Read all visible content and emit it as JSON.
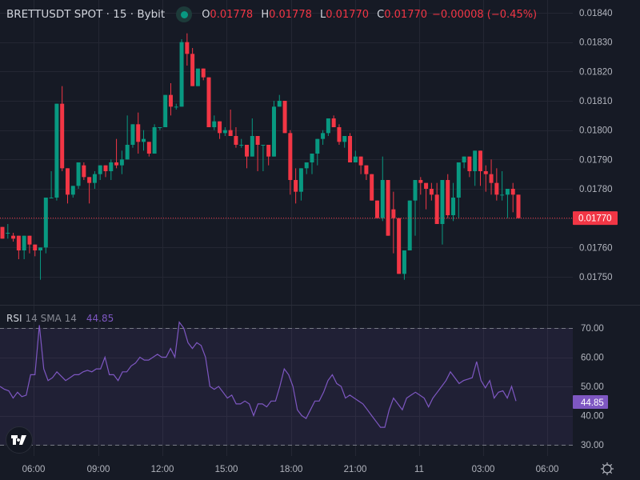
{
  "header": {
    "symbol": "BRETTUSDT SPOT · 15 · Bybit",
    "status_color": "#089981",
    "open_label": "O",
    "open": "0.01778",
    "high_label": "H",
    "high": "0.01778",
    "low_label": "L",
    "low": "0.01770",
    "close_label": "C",
    "close": "0.01770",
    "change": "−0.00008 (−0.45%)"
  },
  "rsi_legend": {
    "name": "RSI",
    "params": "14 SMA 14",
    "value": "44.85"
  },
  "colors": {
    "up": "#089981",
    "down": "#f23645",
    "rsi": "#7e57c2",
    "bg": "#161a25",
    "grid": "#242733"
  },
  "price_axis": {
    "ticks": [
      "0.01840",
      "0.01830",
      "0.01820",
      "0.01810",
      "0.01800",
      "0.01790",
      "0.01780",
      "0.01760",
      "0.01750"
    ],
    "last_price_label": "0.01770"
  },
  "rsi_axis": {
    "ticks": [
      "70.00",
      "60.00",
      "50.00",
      "40.00",
      "30.00"
    ],
    "last_value_label": "44.85"
  },
  "time_axis": {
    "ticks": [
      "06:00",
      "09:00",
      "12:00",
      "15:00",
      "18:00",
      "21:00",
      "11",
      "03:00",
      "06:00"
    ]
  },
  "chart_data": [
    {
      "type": "candlestick",
      "title": "BRETTUSDT SPOT · 15 · Bybit",
      "interval": "15m",
      "ylim": [
        0.01745,
        0.01842
      ],
      "last_price": 0.0177,
      "x_ticks": [
        "06:00",
        "09:00",
        "12:00",
        "15:00",
        "18:00",
        "21:00",
        "11",
        "03:00",
        "06:00"
      ],
      "ohlc": [
        [
          0.01767,
          0.01767,
          0.01763,
          0.01763
        ],
        [
          0.01765,
          0.01768,
          0.01763,
          0.01765
        ],
        [
          0.01764,
          0.01765,
          0.01762,
          0.01763
        ],
        [
          0.01764,
          0.01764,
          0.01756,
          0.01759
        ],
        [
          0.01759,
          0.01764,
          0.01756,
          0.01764
        ],
        [
          0.01764,
          0.01764,
          0.01758,
          0.01761
        ],
        [
          0.01761,
          0.01761,
          0.01757,
          0.01759
        ],
        [
          0.01759,
          0.0176,
          0.01749,
          0.0176
        ],
        [
          0.0176,
          0.01777,
          0.01758,
          0.01777
        ],
        [
          0.01777,
          0.01786,
          0.01777,
          0.01777
        ],
        [
          0.01777,
          0.01809,
          0.01776,
          0.01809
        ],
        [
          0.01809,
          0.01815,
          0.01786,
          0.01787
        ],
        [
          0.01787,
          0.01787,
          0.01775,
          0.01778
        ],
        [
          0.01778,
          0.01781,
          0.01777,
          0.01781
        ],
        [
          0.01781,
          0.01788,
          0.0178,
          0.01789
        ],
        [
          0.01788,
          0.01789,
          0.01783,
          0.01784
        ],
        [
          0.01784,
          0.01784,
          0.01775,
          0.01782
        ],
        [
          0.01782,
          0.01786,
          0.0178,
          0.01785
        ],
        [
          0.01785,
          0.01788,
          0.01783,
          0.01788
        ],
        [
          0.01788,
          0.01788,
          0.01784,
          0.01786
        ],
        [
          0.01786,
          0.0179,
          0.01783,
          0.01789
        ],
        [
          0.01789,
          0.01797,
          0.01787,
          0.01788
        ],
        [
          0.01788,
          0.01793,
          0.01785,
          0.0179
        ],
        [
          0.0179,
          0.01805,
          0.0179,
          0.01795
        ],
        [
          0.01795,
          0.01802,
          0.01794,
          0.01802
        ],
        [
          0.01802,
          0.01806,
          0.01792,
          0.01796
        ],
        [
          0.01796,
          0.018,
          0.01793,
          0.01797
        ],
        [
          0.01796,
          0.01796,
          0.01791,
          0.01792
        ],
        [
          0.01792,
          0.01802,
          0.01792,
          0.01801
        ],
        [
          0.01801,
          0.01801,
          0.018,
          0.01801
        ],
        [
          0.01801,
          0.01812,
          0.01802,
          0.01812
        ],
        [
          0.01812,
          0.01816,
          0.01805,
          0.01808
        ],
        [
          0.01808,
          0.01809,
          0.01807,
          0.01808
        ],
        [
          0.01808,
          0.01831,
          0.01808,
          0.0183
        ],
        [
          0.0183,
          0.01833,
          0.01822,
          0.01826
        ],
        [
          0.01826,
          0.01828,
          0.01815,
          0.01815
        ],
        [
          0.01815,
          0.01819,
          0.01815,
          0.01821
        ],
        [
          0.01821,
          0.01821,
          0.01817,
          0.01818
        ],
        [
          0.01818,
          0.01818,
          0.01801,
          0.01801
        ],
        [
          0.01801,
          0.01805,
          0.018,
          0.01803
        ],
        [
          0.01803,
          0.01803,
          0.01797,
          0.01799
        ],
        [
          0.01799,
          0.01801,
          0.01798,
          0.018
        ],
        [
          0.018,
          0.01807,
          0.01799,
          0.01798
        ],
        [
          0.01798,
          0.01801,
          0.01794,
          0.01795
        ],
        [
          0.01795,
          0.01797,
          0.01794,
          0.01795
        ],
        [
          0.01795,
          0.01795,
          0.01787,
          0.01791
        ],
        [
          0.01791,
          0.01804,
          0.01791,
          0.01798
        ],
        [
          0.01798,
          0.01798,
          0.01786,
          0.01795
        ],
        [
          0.01795,
          0.01795,
          0.01786,
          0.01795
        ],
        [
          0.01795,
          0.01795,
          0.01788,
          0.01791
        ],
        [
          0.01791,
          0.0181,
          0.01791,
          0.01808
        ],
        [
          0.01808,
          0.01812,
          0.01808,
          0.0181
        ],
        [
          0.0181,
          0.0181,
          0.01799,
          0.01799
        ],
        [
          0.01799,
          0.018,
          0.01778,
          0.01783
        ],
        [
          0.01783,
          0.01787,
          0.01775,
          0.01779
        ],
        [
          0.01779,
          0.01787,
          0.01776,
          0.01787
        ],
        [
          0.01787,
          0.01789,
          0.01785,
          0.01789
        ],
        [
          0.01789,
          0.01791,
          0.01785,
          0.01792
        ],
        [
          0.01792,
          0.01797,
          0.01788,
          0.01797
        ],
        [
          0.01797,
          0.018,
          0.01795,
          0.01799
        ],
        [
          0.01799,
          0.01804,
          0.01798,
          0.01804
        ],
        [
          0.01804,
          0.01805,
          0.01801,
          0.01801
        ],
        [
          0.01801,
          0.01802,
          0.01795,
          0.01796
        ],
        [
          0.01796,
          0.01797,
          0.01794,
          0.01798
        ],
        [
          0.01798,
          0.01799,
          0.01789,
          0.01789
        ],
        [
          0.01789,
          0.01793,
          0.01789,
          0.01791
        ],
        [
          0.01791,
          0.01791,
          0.01785,
          0.01788
        ],
        [
          0.01788,
          0.01788,
          0.01783,
          0.01785
        ],
        [
          0.01785,
          0.01785,
          0.01776,
          0.01776
        ],
        [
          0.01776,
          0.01776,
          0.0177,
          0.0177
        ],
        [
          0.0177,
          0.01791,
          0.01769,
          0.01783
        ],
        [
          0.01783,
          0.01783,
          0.01764,
          0.01764
        ],
        [
          0.01773,
          0.01779,
          0.01758,
          0.0177
        ],
        [
          0.0177,
          0.0177,
          0.01751,
          0.01751
        ],
        [
          0.01751,
          0.01759,
          0.01749,
          0.01759
        ],
        [
          0.01759,
          0.01776,
          0.01759,
          0.01776
        ],
        [
          0.01776,
          0.01783,
          0.01764,
          0.01783
        ],
        [
          0.01783,
          0.01784,
          0.01778,
          0.01782
        ],
        [
          0.01782,
          0.0178,
          0.01773,
          0.0178
        ],
        [
          0.0178,
          0.01782,
          0.01776,
          0.01778
        ],
        [
          0.01778,
          0.01782,
          0.01771,
          0.01768
        ],
        [
          0.01768,
          0.01783,
          0.01761,
          0.01783
        ],
        [
          0.01783,
          0.01785,
          0.0177,
          0.01771
        ],
        [
          0.01771,
          0.01782,
          0.01769,
          0.01777
        ],
        [
          0.01777,
          0.01789,
          0.0177,
          0.01789
        ],
        [
          0.01789,
          0.01791,
          0.01787,
          0.01791
        ],
        [
          0.01791,
          0.0179,
          0.01784,
          0.01786
        ],
        [
          0.01786,
          0.01793,
          0.01781,
          0.01793
        ],
        [
          0.01793,
          0.01793,
          0.01781,
          0.01786
        ],
        [
          0.01786,
          0.01788,
          0.01779,
          0.01785
        ],
        [
          0.01785,
          0.0179,
          0.01778,
          0.01782
        ],
        [
          0.01782,
          0.01787,
          0.01776,
          0.01778
        ],
        [
          0.01778,
          0.01786,
          0.01776,
          0.01778
        ],
        [
          0.01778,
          0.0178,
          0.0177,
          0.0178
        ],
        [
          0.0178,
          0.01782,
          0.01772,
          0.01778
        ],
        [
          0.01778,
          0.01778,
          0.0177,
          0.0177
        ]
      ]
    },
    {
      "type": "line",
      "title": "RSI 14 SMA 14",
      "ylim": [
        30,
        70
      ],
      "last_value": 44.85,
      "values": [
        50,
        49,
        48.5,
        46,
        48,
        46.5,
        47,
        54,
        54,
        71,
        56,
        52,
        53,
        55,
        53.5,
        52,
        53,
        54,
        54,
        55,
        55.5,
        55,
        56,
        56,
        60,
        54,
        54,
        52,
        55,
        55,
        57,
        58,
        60,
        59,
        59,
        60,
        61,
        60,
        60,
        63,
        60,
        72,
        70,
        65,
        63,
        65,
        64,
        60,
        50,
        49,
        50,
        48,
        46,
        47,
        44,
        44,
        45,
        44,
        40,
        44,
        44,
        43,
        45,
        45,
        50,
        56,
        54,
        50,
        42,
        40,
        39,
        42,
        45,
        45,
        48,
        52,
        54,
        51,
        50,
        46,
        47,
        46,
        45,
        44,
        42,
        40,
        38,
        36,
        36,
        42,
        46,
        44,
        42,
        46,
        47,
        48,
        47,
        46,
        43,
        46,
        48,
        50,
        52,
        55,
        53,
        51,
        52,
        52.5,
        53,
        58.5,
        52,
        49.5,
        52,
        46,
        48,
        48.5,
        46,
        50,
        45
      ]
    }
  ]
}
